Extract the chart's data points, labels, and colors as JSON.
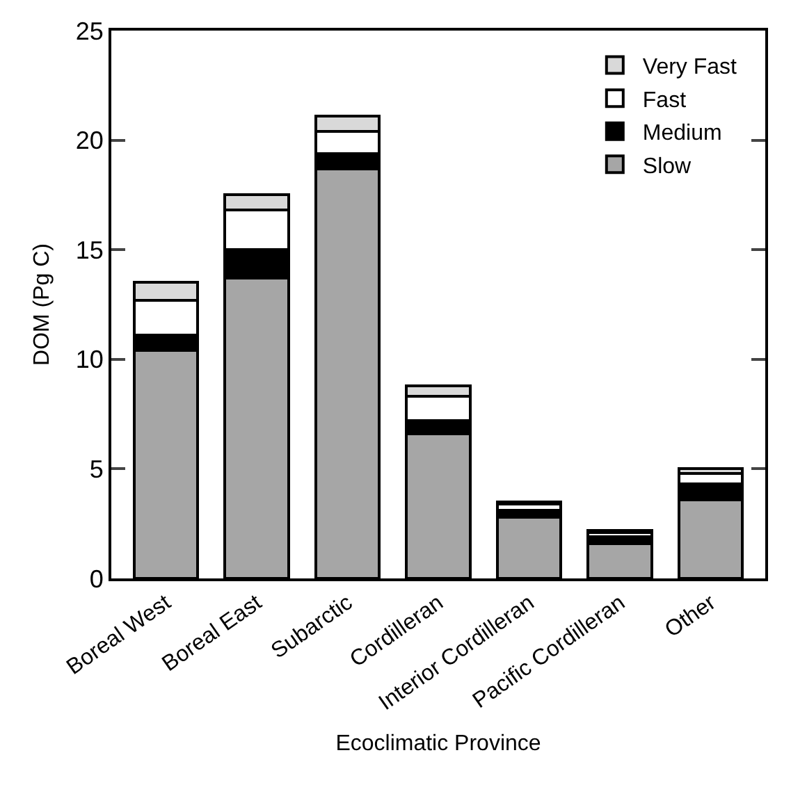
{
  "chart_data": {
    "type": "bar",
    "stacked": true,
    "xlabel": "Ecoclimatic Province",
    "ylabel": "DOM (Pg C)",
    "categories": [
      "Boreal West",
      "Boreal East",
      "Subarctic",
      "Cordilleran",
      "Interior Cordilleran",
      "Pacific Cordilleran",
      "Other"
    ],
    "series": [
      {
        "name": "Slow",
        "color": "#a6a6a6",
        "values": [
          10.4,
          13.7,
          18.7,
          6.6,
          2.8,
          1.6,
          3.6
        ]
      },
      {
        "name": "Medium",
        "color": "#000000",
        "values": [
          0.7,
          1.3,
          0.7,
          0.6,
          0.3,
          0.3,
          0.7
        ]
      },
      {
        "name": "Fast",
        "color": "#ffffff",
        "values": [
          1.6,
          1.8,
          1.0,
          1.1,
          0.3,
          0.2,
          0.5
        ]
      },
      {
        "name": "Very Fast",
        "color": "#d9d9d9",
        "values": [
          0.8,
          0.7,
          0.7,
          0.5,
          0.1,
          0.1,
          0.2
        ]
      }
    ],
    "ylim": [
      0,
      25
    ],
    "yticks": [
      0,
      5,
      10,
      15,
      20,
      25
    ],
    "legend": "top right"
  }
}
